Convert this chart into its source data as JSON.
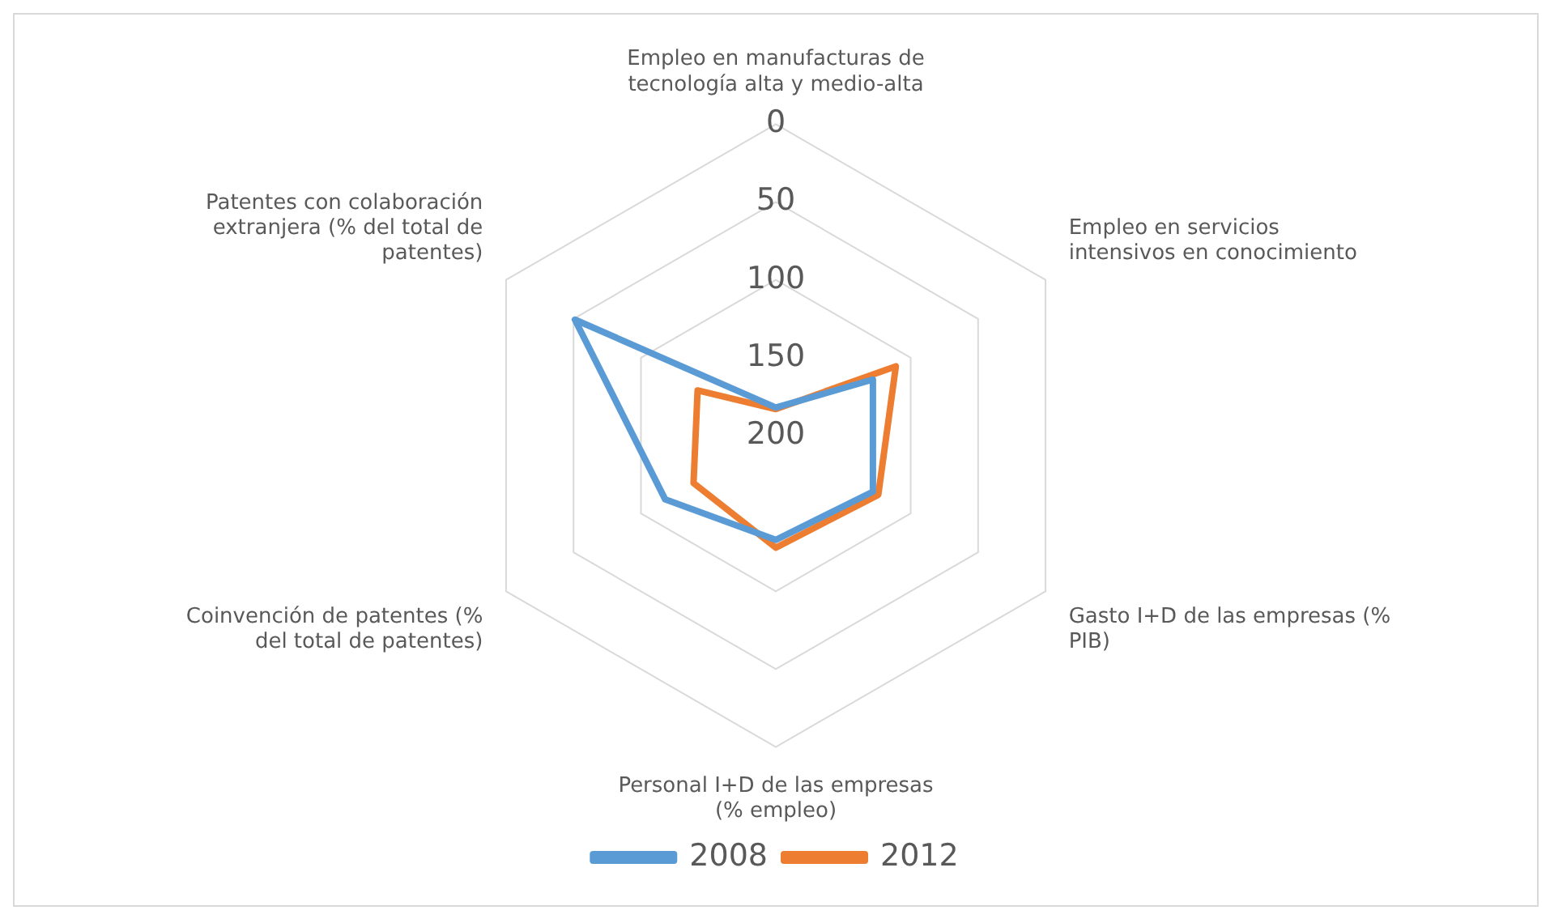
{
  "chart_data": {
    "type": "radar",
    "categories": [
      "Empleo en manufacturas de tecnología alta y medio-alta",
      "Empleo en servicios intensivos en conocimiento",
      "Gasto I+D de las empresas (% PIB)",
      "Personal I+D de las empresas (% empleo)",
      "Coinvención de patentes (% del total de patentes)",
      "Patentes con colaboración extranjera (% del total de patentes)"
    ],
    "series": [
      {
        "name": "2008",
        "color": "#5b9bd5",
        "values": [
          182,
          128,
          128,
          133,
          118,
          51
        ]
      },
      {
        "name": "2012",
        "color": "#ed7d31",
        "values": [
          183,
          111,
          124,
          128,
          139,
          142
        ]
      }
    ],
    "ylim": [
      200,
      0
    ],
    "yticks": [
      0,
      50,
      100,
      150,
      200
    ],
    "grid": true,
    "legend": "bottom",
    "marker": "none"
  }
}
